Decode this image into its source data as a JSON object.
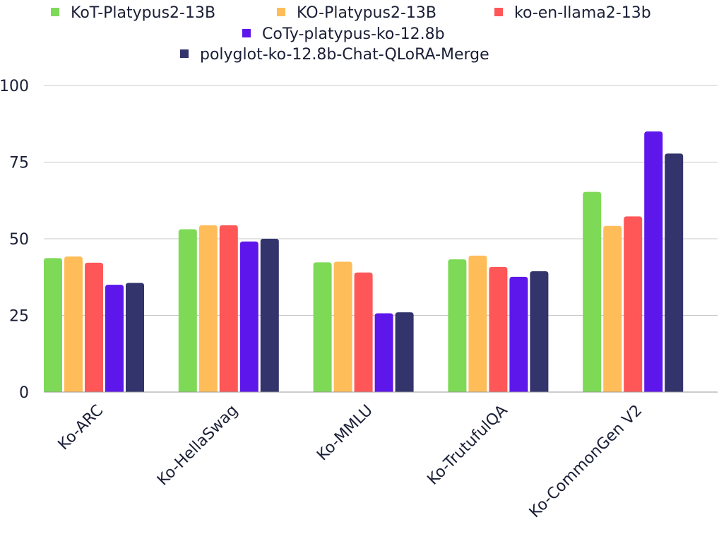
{
  "chart_data": {
    "type": "bar",
    "categories": [
      "Ko-ARC",
      "Ko-HellaSwag",
      "Ko-MMLU",
      "Ko-TrutufulQA",
      "Ko-CommonGen V2"
    ],
    "series": [
      {
        "name": "KoT-Platypus2-13B",
        "color": "#7ed957",
        "values": [
          43.7,
          53.1,
          42.3,
          43.3,
          65.3
        ]
      },
      {
        "name": "KO-Platypus2-13B",
        "color": "#ffbd59",
        "values": [
          44.2,
          54.4,
          42.5,
          44.5,
          54.2
        ]
      },
      {
        "name": "ko-en-llama2-13b",
        "color": "#ff5757",
        "values": [
          42.2,
          54.4,
          39.0,
          40.8,
          57.3
        ]
      },
      {
        "name": "CoTy-platypus-ko-12.8b",
        "color": "#5e17eb",
        "values": [
          35.0,
          49.1,
          25.7,
          37.6,
          85.0
        ]
      },
      {
        "name": "polyglot-ko-12.8b-Chat-QLoRA-Merge",
        "color": "#32346b",
        "values": [
          35.6,
          50.0,
          26.0,
          39.4,
          77.8
        ]
      }
    ],
    "ylim": [
      0,
      100
    ],
    "yticks": [
      0,
      25,
      50,
      75,
      100
    ],
    "grid": true,
    "legend_position": "top"
  }
}
